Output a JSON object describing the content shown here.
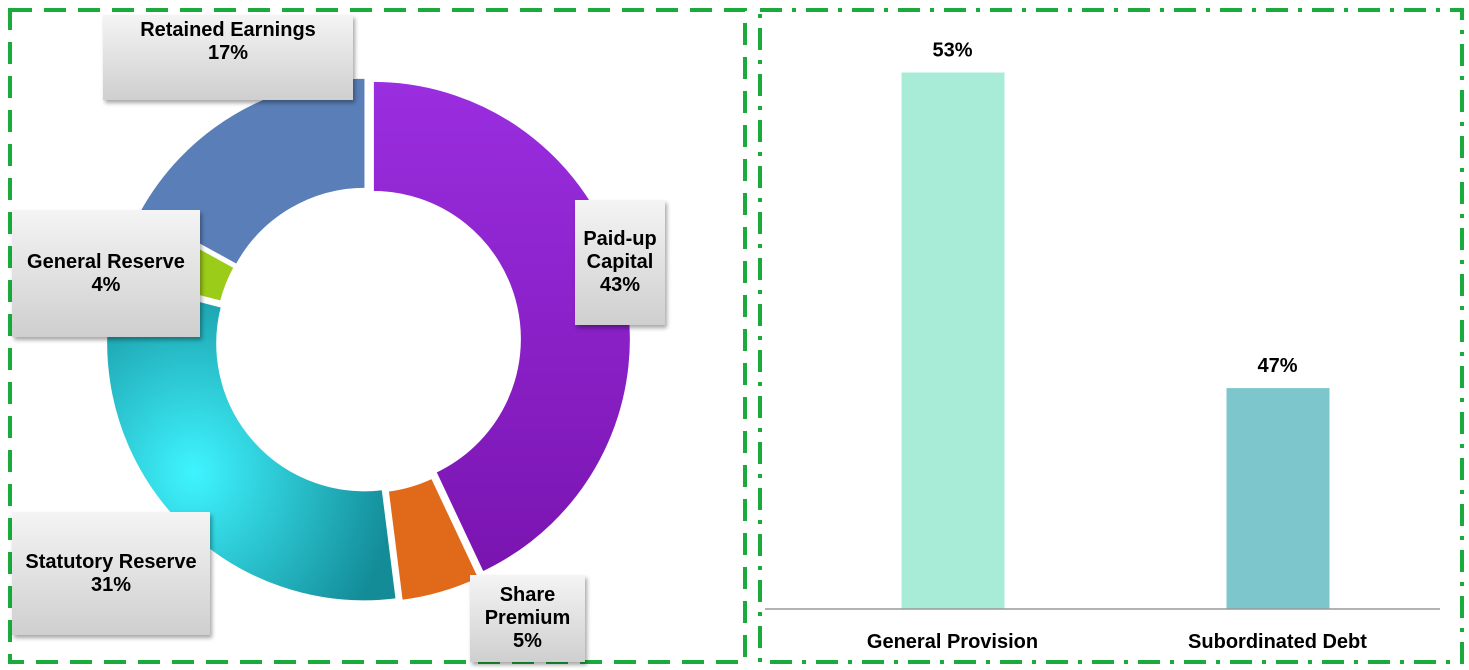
{
  "chart_data": [
    {
      "type": "donut",
      "categories": [
        "Paid-up Capital",
        "Share Premium",
        "Statutory Reserve",
        "General Reserve",
        "Retained Earnings"
      ],
      "values": [
        43,
        5,
        31,
        4,
        17
      ],
      "value_labels": [
        "43%",
        "5%",
        "31%",
        "4%",
        "17%"
      ],
      "colors": [
        "#8a1fc4",
        "#e06a1a",
        "#1aa8b4",
        "#9ccc1a",
        "#5a7fb8"
      ]
    },
    {
      "type": "bar",
      "categories": [
        "General Provision",
        "Subordinated Debt"
      ],
      "values": [
        53,
        47
      ],
      "value_labels": [
        "53%",
        "47%"
      ],
      "colors": [
        "#a8ecd8",
        "#7cc6cc"
      ],
      "ylim": [
        42.8,
        53.2
      ]
    }
  ]
}
